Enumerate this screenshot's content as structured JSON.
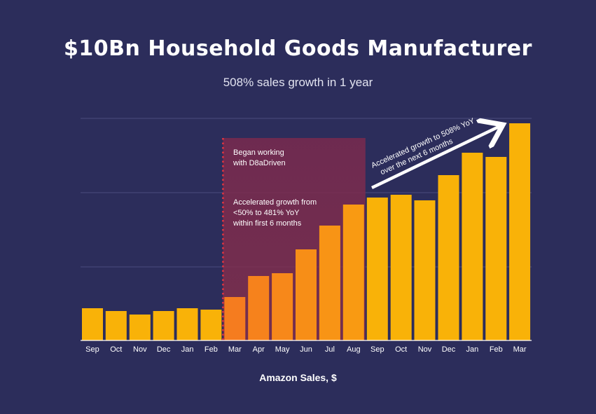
{
  "chart_data": {
    "type": "bar",
    "title": "$10Bn Household Goods Manufacturer",
    "subtitle": "508% sales growth in 1 year",
    "xlabel": "Amazon Sales, $",
    "ylabel": "",
    "categories": [
      "Sep",
      "Oct",
      "Nov",
      "Dec",
      "Jan",
      "Feb",
      "Mar",
      "Apr",
      "May",
      "Jun",
      "Jul",
      "Aug",
      "Sep",
      "Oct",
      "Nov",
      "Dec",
      "Jan",
      "Feb",
      "Mar"
    ],
    "values": [
      46,
      42,
      37,
      42,
      46,
      44,
      62,
      92,
      96,
      130,
      164,
      194,
      204,
      208,
      200,
      236,
      268,
      262,
      310
    ],
    "ylim": [
      0,
      320
    ],
    "grid": true,
    "colors": {
      "background": "#2c2d5b",
      "bar_default": "#f9b208",
      "bar_highlight_start": "#f57c1f",
      "bar_highlight_end": "#f99a12",
      "highlight_region": "#8b2a4c",
      "divider_line": "#e4343f",
      "gridline": "#4a4c7c"
    },
    "highlight_range": [
      6,
      11
    ],
    "annotations": {
      "began_line1": "Began working",
      "began_line2": "with D8aDriven",
      "accel_line1": "Accelerated growth from",
      "accel_line2": "<50% to 481% YoY",
      "accel_line3": "within first 6 months",
      "arrow_line1": "Accelerated growth to 508% YoY",
      "arrow_line2": "over the next 6 months"
    }
  }
}
